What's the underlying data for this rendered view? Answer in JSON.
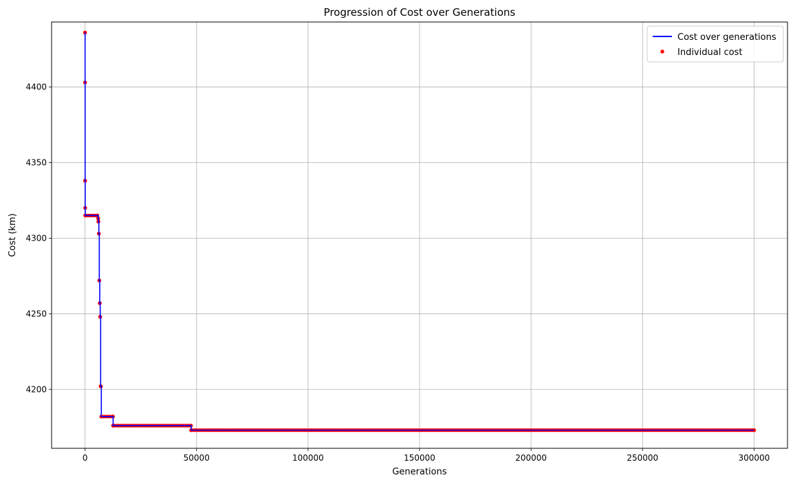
{
  "chart_data": {
    "type": "line",
    "title": "Progression of Cost over Generations",
    "xlabel": "Generations",
    "ylabel": "Cost (km)",
    "xlim": [
      -15000,
      315000
    ],
    "ylim": [
      4161,
      4443
    ],
    "xticks": [
      0,
      50000,
      100000,
      150000,
      200000,
      250000,
      300000
    ],
    "xtick_labels": [
      "0",
      "50000",
      "100000",
      "150000",
      "200000",
      "250000",
      "300000"
    ],
    "yticks": [
      4200,
      4250,
      4300,
      4350,
      4400
    ],
    "ytick_labels": [
      "4200",
      "4250",
      "4300",
      "4350",
      "4400"
    ],
    "grid": true,
    "legend_position": "top-right",
    "colors": {
      "line": "#0000ff",
      "points": "#ff0000",
      "grid": "#b0b0b0",
      "axes": "#000000"
    },
    "series": [
      {
        "name": "Cost over generations",
        "kind": "step-line",
        "x": [
          0,
          20,
          40,
          60,
          100,
          5500,
          5900,
          6000,
          6200,
          6400,
          6600,
          6800,
          7000,
          7100,
          7300,
          12500,
          12600,
          47500,
          47600,
          300000
        ],
        "y": [
          4436,
          4403,
          4338,
          4320,
          4315,
          4315,
          4313,
          4311,
          4303,
          4272,
          4257,
          4248,
          4202,
          4202,
          4182,
          4182,
          4176,
          4176,
          4173,
          4173
        ]
      },
      {
        "name": "Individual cost",
        "kind": "scatter",
        "x": [
          0,
          20,
          40,
          60,
          100,
          5500,
          5900,
          6000,
          6200,
          6400,
          6600,
          6800,
          7000,
          7100,
          7300,
          12500,
          12600,
          47500,
          47600,
          300000
        ],
        "y": [
          4436,
          4403,
          4338,
          4320,
          4315,
          4315,
          4313,
          4311,
          4303,
          4272,
          4257,
          4248,
          4202,
          4202,
          4182,
          4182,
          4176,
          4176,
          4173,
          4173
        ],
        "plateaus": [
          {
            "x_start": 100,
            "x_end": 5500,
            "y": 4315
          },
          {
            "x_start": 7300,
            "x_end": 12500,
            "y": 4182
          },
          {
            "x_start": 12600,
            "x_end": 47500,
            "y": 4176
          },
          {
            "x_start": 47600,
            "x_end": 300000,
            "y": 4173
          }
        ]
      }
    ]
  }
}
